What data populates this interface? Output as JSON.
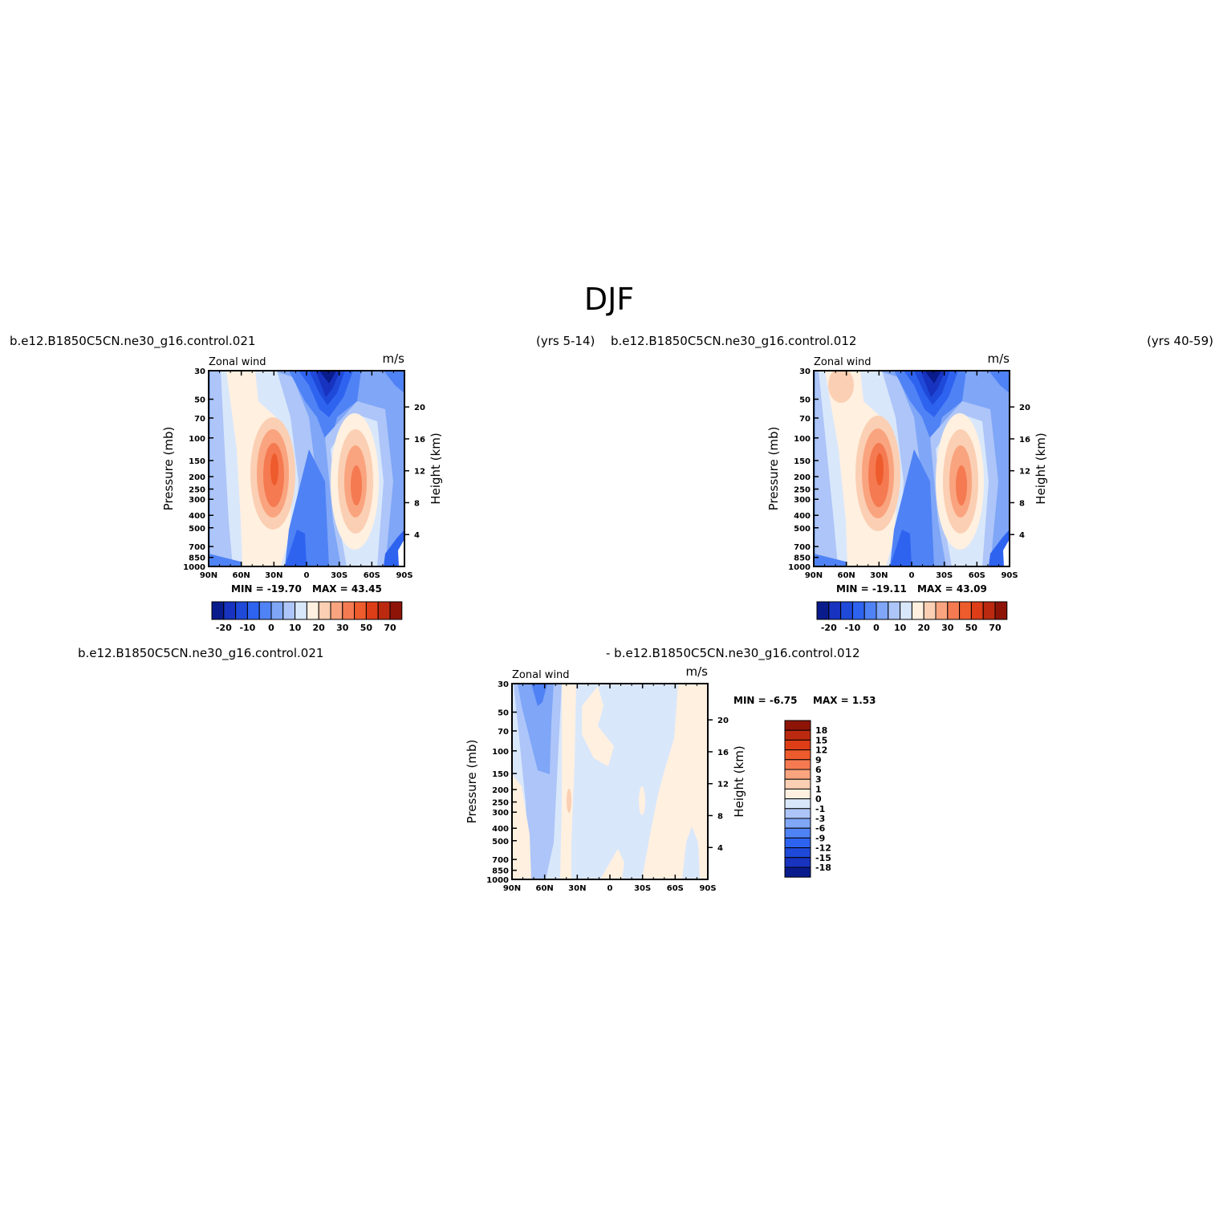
{
  "page": {
    "title": "DJF"
  },
  "colors": {
    "main_levels": [
      "#0a1b8c",
      "#1733c0",
      "#1f4ad9",
      "#2e63f0",
      "#4f82f5",
      "#7fa6f7",
      "#adc5f8",
      "#d9e7fb",
      "#fff0e0",
      "#fbcfb3",
      "#f9a47f",
      "#f57a51",
      "#ee5b2c",
      "#dd3d17",
      "#bb2a10",
      "#8e1408"
    ],
    "diff_levels": [
      "#0a1b8c",
      "#1733c0",
      "#1f4ad9",
      "#2e63f0",
      "#4f82f5",
      "#7fa6f7",
      "#adc5f8",
      "#d9e7fb",
      "#fff0e0",
      "#fbcfb3",
      "#f9a47f",
      "#f57a51",
      "#ee5b2c",
      "#dd3d17",
      "#bb2a10",
      "#8e1408"
    ]
  },
  "headers": {
    "left_case": "b.e12.B1850C5CN.ne30_g16.control.021",
    "left_years": "(yrs 5-14)",
    "right_case": "b.e12.B1850C5CN.ne30_g16.control.012",
    "right_years": "(yrs 40-59)",
    "diff_case_a": "b.e12.B1850C5CN.ne30_g16.control.021",
    "diff_case_b": "- b.e12.B1850C5CN.ne30_g16.control.012"
  },
  "panels": [
    {
      "var_label": "Zonal wind",
      "units": "m/s",
      "min_label": "MIN = -19.70",
      "max_label": "MAX =   43.45",
      "colorbar_labels": [
        "-20",
        "-10",
        "0",
        "10",
        "20",
        "30",
        "50",
        "70"
      ]
    },
    {
      "var_label": "Zonal wind",
      "units": "m/s",
      "min_label": "MIN = -19.11",
      "max_label": "MAX =   43.09",
      "colorbar_labels": [
        "-20",
        "-10",
        "0",
        "10",
        "20",
        "30",
        "50",
        "70"
      ]
    },
    {
      "var_label": "Zonal wind",
      "units": "m/s",
      "min_label": "MIN =   -6.75",
      "max_label": "MAX =   1.53",
      "colorbar_labels": [
        "18",
        "15",
        "12",
        "9",
        "6",
        "3",
        "1",
        "0",
        "-1",
        "-3",
        "-6",
        "-9",
        "-12",
        "-15",
        "-18"
      ]
    }
  ],
  "chart_data": [
    {
      "type": "heatmap",
      "title": "Zonal wind",
      "units": "m/s",
      "xlabel": "",
      "ylabel": "Pressure (mb)",
      "ylabel_right": "Height (km)",
      "x_ticks": [
        "90N",
        "60N",
        "30N",
        "0",
        "30S",
        "60S",
        "90S"
      ],
      "y_ticks": [
        "30",
        "50",
        "70",
        "100",
        "150",
        "200",
        "250",
        "300",
        "400",
        "500",
        "700",
        "850",
        "1000"
      ],
      "y_right_ticks": [
        "20",
        "16",
        "12",
        "8",
        "4"
      ],
      "levels": [
        -20,
        -15,
        -10,
        -5,
        0,
        5,
        10,
        15,
        20,
        25,
        30,
        40,
        50,
        60,
        70
      ],
      "min": -19.7,
      "max": 43.45,
      "features": [
        {
          "lat": 30,
          "pressure": 200,
          "value": 43.45
        },
        {
          "lat": -45,
          "pressure": 250,
          "value": 30
        },
        {
          "lat": 10,
          "pressure": 30,
          "value": -19.7
        }
      ]
    },
    {
      "type": "heatmap",
      "title": "Zonal wind",
      "units": "m/s",
      "xlabel": "",
      "ylabel": "Pressure (mb)",
      "ylabel_right": "Height (km)",
      "x_ticks": [
        "90N",
        "60N",
        "30N",
        "0",
        "30S",
        "60S",
        "90S"
      ],
      "y_ticks": [
        "30",
        "50",
        "70",
        "100",
        "150",
        "200",
        "250",
        "300",
        "400",
        "500",
        "700",
        "850",
        "1000"
      ],
      "y_right_ticks": [
        "20",
        "16",
        "12",
        "8",
        "4"
      ],
      "levels": [
        -20,
        -15,
        -10,
        -5,
        0,
        5,
        10,
        15,
        20,
        25,
        30,
        40,
        50,
        60,
        70
      ],
      "min": -19.11,
      "max": 43.09,
      "features": [
        {
          "lat": 30,
          "pressure": 200,
          "value": 43.09
        },
        {
          "lat": -45,
          "pressure": 250,
          "value": 30
        },
        {
          "lat": 10,
          "pressure": 30,
          "value": -19.11
        }
      ]
    },
    {
      "type": "heatmap",
      "title": "Zonal wind",
      "units": "m/s",
      "xlabel": "",
      "ylabel": "Pressure (mb)",
      "ylabel_right": "Height (km)",
      "x_ticks": [
        "90N",
        "60N",
        "30N",
        "0",
        "30S",
        "60S",
        "90S"
      ],
      "y_ticks": [
        "30",
        "50",
        "70",
        "100",
        "150",
        "200",
        "250",
        "300",
        "400",
        "500",
        "700",
        "850",
        "1000"
      ],
      "y_right_ticks": [
        "20",
        "16",
        "12",
        "8",
        "4"
      ],
      "levels": [
        -18,
        -15,
        -12,
        -9,
        -6,
        -3,
        -1,
        0,
        1,
        3,
        6,
        9,
        12,
        15,
        18
      ],
      "min": -6.75,
      "max": 1.53,
      "features": [
        {
          "lat": 70,
          "pressure": 100,
          "value": -6.75
        },
        {
          "lat": 38,
          "pressure": 280,
          "value": 1.53
        }
      ]
    }
  ]
}
